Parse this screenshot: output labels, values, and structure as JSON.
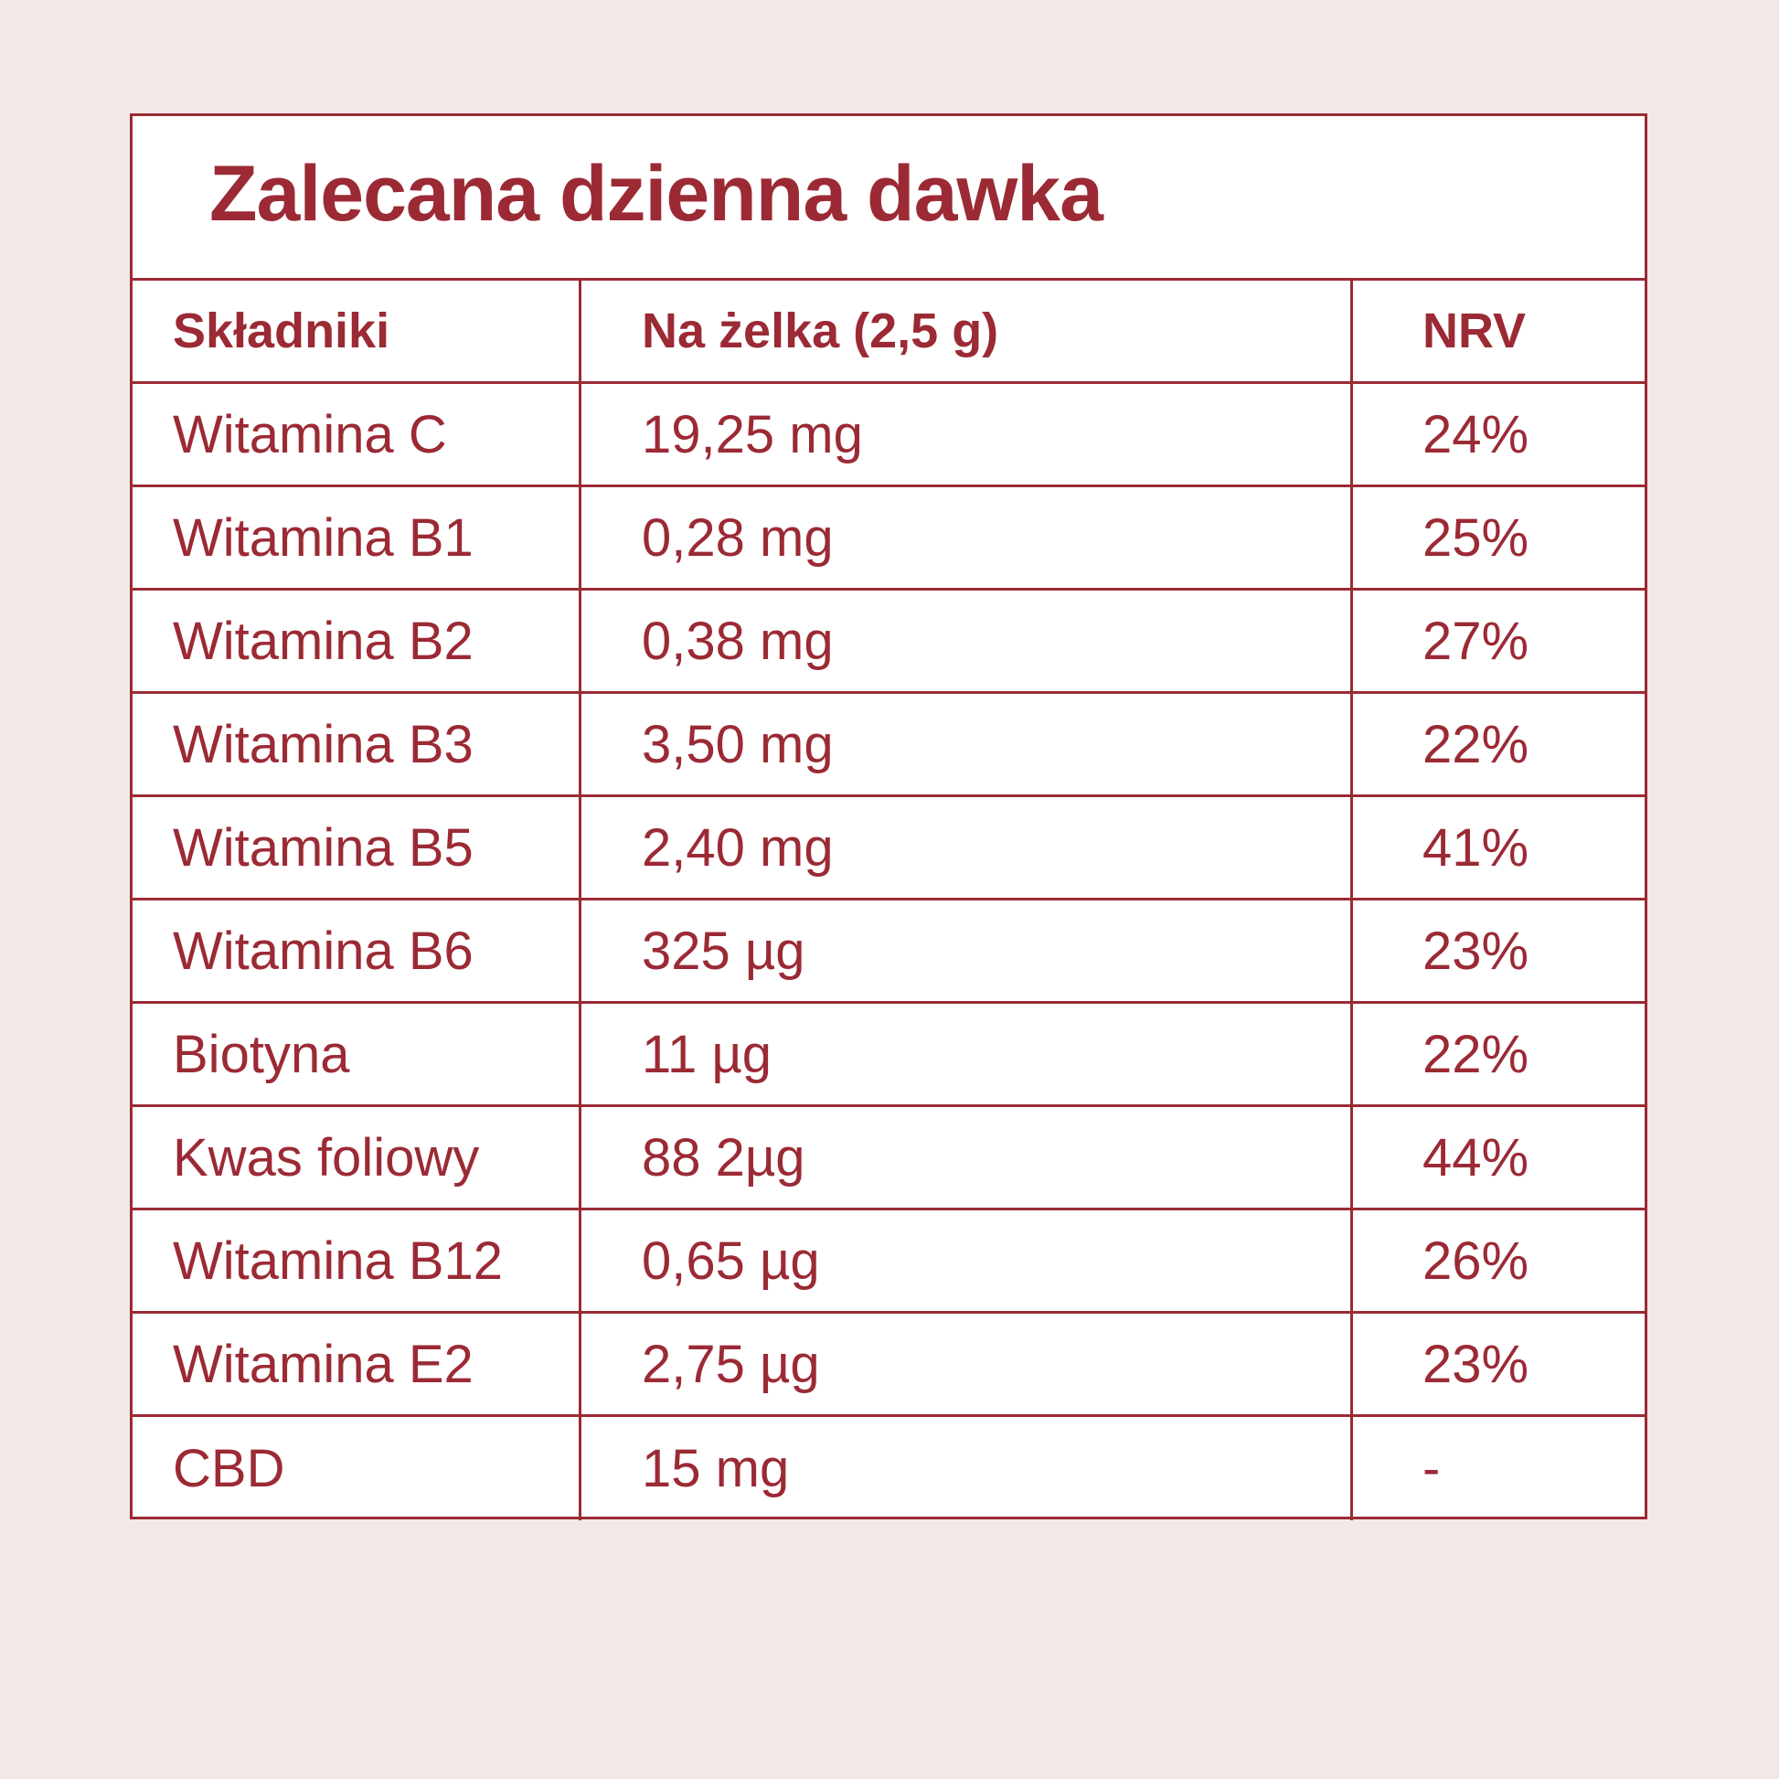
{
  "title": "Zalecana dzienna dawka",
  "headers": {
    "ingredient": "Składniki",
    "per_gummy": "Na żelka (2,5 g)",
    "nrv": "NRV"
  },
  "rows": [
    {
      "ingredient": "Witamina C",
      "amount": "19,25 mg",
      "nrv": "24%"
    },
    {
      "ingredient": "Witamina B1",
      "amount": "0,28 mg",
      "nrv": "25%"
    },
    {
      "ingredient": "Witamina B2",
      "amount": "0,38 mg",
      "nrv": "27%"
    },
    {
      "ingredient": "Witamina B3",
      "amount": "3,50 mg",
      "nrv": "22%"
    },
    {
      "ingredient": "Witamina B5",
      "amount": "2,40 mg",
      "nrv": "41%"
    },
    {
      "ingredient": "Witamina B6",
      "amount": "325 µg",
      "nrv": "23%"
    },
    {
      "ingredient": "Biotyna",
      "amount": "11 µg",
      "nrv": "22%"
    },
    {
      "ingredient": "Kwas foliowy",
      "amount": "88 2µg",
      "nrv": "44%"
    },
    {
      "ingredient": "Witamina B12",
      "amount": "0,65 µg",
      "nrv": "26%"
    },
    {
      "ingredient": "Witamina E2",
      "amount": "2,75 µg",
      "nrv": "23%"
    },
    {
      "ingredient": "CBD",
      "amount": "15 mg",
      "nrv": "-"
    }
  ],
  "colors": {
    "accent": "#9b2a35",
    "background": "#f2e8e6",
    "card": "#ffffff"
  }
}
